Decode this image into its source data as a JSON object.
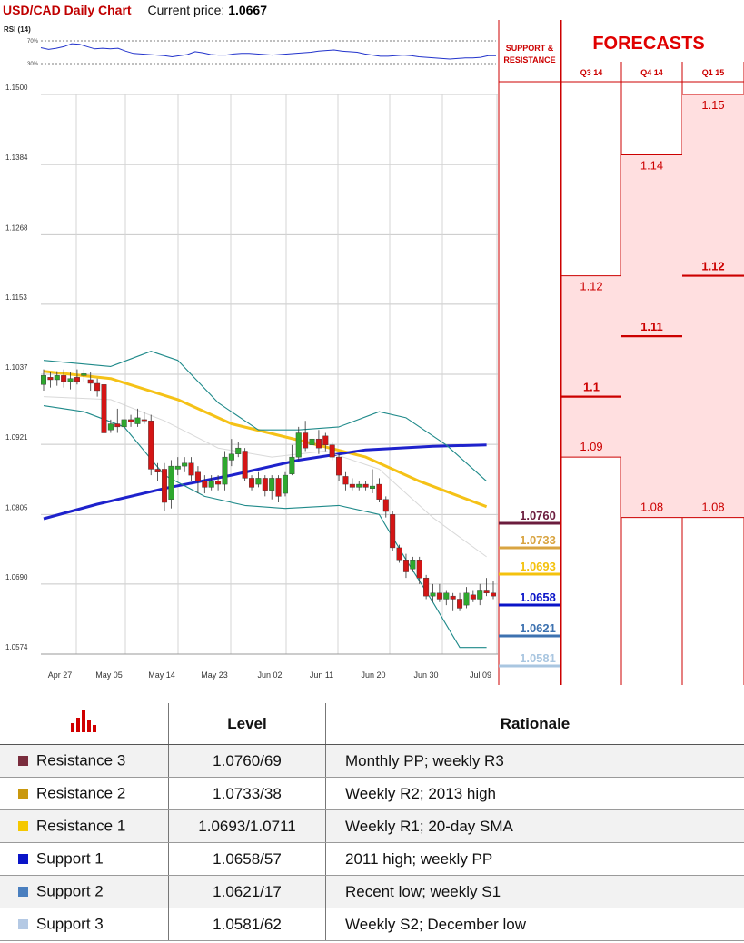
{
  "header": {
    "title": "USD/CAD Daily Chart",
    "price_label": "Current price:",
    "price_value": "1.0667"
  },
  "rsi": {
    "label": "RSI (14)",
    "upper_label": "70%",
    "lower_label": "30%",
    "values": [
      58,
      55,
      57,
      60,
      65,
      64,
      60,
      56,
      57,
      56,
      57,
      52,
      48,
      47,
      46,
      45,
      44,
      42,
      44,
      46,
      51,
      49,
      46,
      45,
      45,
      47,
      48,
      48,
      47,
      46,
      45,
      46,
      47,
      48,
      49,
      50,
      52,
      53,
      54,
      52,
      51,
      50,
      47,
      45,
      43,
      43,
      44,
      45,
      44,
      42,
      41,
      40,
      39,
      38,
      39,
      40,
      40,
      41,
      44,
      44
    ]
  },
  "support_resistance": {
    "header_line1": "SUPPORT &",
    "header_line2": "RESISTANCE",
    "levels": [
      {
        "label": "1.0760",
        "value": 1.076,
        "color": "#6b1d3e"
      },
      {
        "label": "1.0733",
        "value": 1.0733,
        "color": "#d9a441"
      },
      {
        "label": "1.0693",
        "value": 1.0693,
        "color": "#f4c20d"
      },
      {
        "label": "1.0658",
        "value": 1.0658,
        "color": "#0a14c8"
      },
      {
        "label": "1.0621",
        "value": 1.0621,
        "color": "#3d72b0"
      },
      {
        "label": "1.0581",
        "value": 1.0581,
        "color": "#a9c6e0"
      }
    ]
  },
  "forecasts": {
    "title": "FORECASTS",
    "columns": [
      {
        "period": "Q3 14",
        "high": 1.12,
        "mean": 1.1,
        "low": 1.09,
        "high_label": "1.12",
        "mean_label": "1.1",
        "low_label": "1.09"
      },
      {
        "period": "Q4 14",
        "high": 1.14,
        "mean": 1.11,
        "low": 1.08,
        "high_label": "1.14",
        "mean_label": "1.11",
        "low_label": "1.08"
      },
      {
        "period": "Q1 15",
        "high": 1.15,
        "mean": 1.12,
        "low": 1.08,
        "high_label": "1.15",
        "mean_label": "1.12",
        "low_label": "1.08"
      }
    ]
  },
  "chart_data": {
    "type": "candlestick",
    "title": "USD/CAD Daily Chart",
    "ylim": [
      1.0574,
      1.15
    ],
    "y_ticks": [
      "1.1500",
      "1.1384",
      "1.1268",
      "1.1153",
      "1.1037",
      "1.0921",
      "1.0805",
      "1.0690",
      "1.0574"
    ],
    "x_ticks": [
      "Apr 27",
      "May 05",
      "May 14",
      "May 23",
      "Jun 02",
      "Jun 11",
      "Jun 20",
      "Jun 30",
      "Jul 09"
    ],
    "candles": [
      [
        1.102,
        1.1035,
        1.1045,
        1.101
      ],
      [
        1.1032,
        1.1028,
        1.104,
        1.1015
      ],
      [
        1.1028,
        1.1035,
        1.1042,
        1.1018
      ],
      [
        1.1035,
        1.1025,
        1.1045,
        1.1015
      ],
      [
        1.1025,
        1.103,
        1.104,
        1.1012
      ],
      [
        1.1032,
        1.1025,
        1.1045,
        1.102
      ],
      [
        1.1035,
        1.1038,
        1.1045,
        1.1025
      ],
      [
        1.1028,
        1.1022,
        1.104,
        1.101
      ],
      [
        1.1022,
        1.101,
        1.103,
        1.1
      ],
      [
        1.102,
        1.094,
        1.1025,
        1.0935
      ],
      [
        1.0945,
        1.0955,
        1.0962,
        1.094
      ],
      [
        1.0955,
        1.095,
        1.098,
        1.094
      ],
      [
        1.095,
        1.0962,
        1.099,
        1.0945
      ],
      [
        1.0962,
        1.0958,
        1.097,
        1.095
      ],
      [
        1.0955,
        1.0965,
        1.098,
        1.095
      ],
      [
        1.0962,
        1.096,
        1.0975,
        1.0955
      ],
      [
        1.096,
        1.088,
        1.097,
        1.087
      ],
      [
        1.088,
        1.0875,
        1.089,
        1.086
      ],
      [
        1.088,
        1.0825,
        1.089,
        1.081
      ],
      [
        1.083,
        1.0885,
        1.0895,
        1.0815
      ],
      [
        1.088,
        1.0885,
        1.09,
        1.087
      ],
      [
        1.0885,
        1.089,
        1.09,
        1.0875
      ],
      [
        1.089,
        1.087,
        1.09,
        1.086
      ],
      [
        1.0875,
        1.086,
        1.0885,
        1.084
      ],
      [
        1.086,
        1.085,
        1.087,
        1.084
      ],
      [
        1.085,
        1.086,
        1.087,
        1.0845
      ],
      [
        1.086,
        1.0855,
        1.087,
        1.0845
      ],
      [
        1.0855,
        1.09,
        1.091,
        1.0845
      ],
      [
        1.0895,
        1.0905,
        1.093,
        1.0885
      ],
      [
        1.0905,
        1.0915,
        1.0925,
        1.09
      ],
      [
        1.091,
        1.0865,
        1.0915,
        1.086
      ],
      [
        1.0865,
        1.085,
        1.087,
        1.0845
      ],
      [
        1.0855,
        1.0865,
        1.0875,
        1.085
      ],
      [
        1.0865,
        1.0845,
        1.087,
        1.0835
      ],
      [
        1.0845,
        1.0865,
        1.087,
        1.083
      ],
      [
        1.0865,
        1.0835,
        1.087,
        1.0825
      ],
      [
        1.084,
        1.087,
        1.0875,
        1.0835
      ],
      [
        1.0872,
        1.09,
        1.092,
        1.087
      ],
      [
        1.09,
        1.094,
        1.095,
        1.0895
      ],
      [
        1.094,
        1.0915,
        1.096,
        1.091
      ],
      [
        1.092,
        1.093,
        1.0945,
        1.0915
      ],
      [
        1.093,
        1.0915,
        1.0945,
        1.0905
      ],
      [
        1.0935,
        1.092,
        1.094,
        1.091
      ],
      [
        1.092,
        1.09,
        1.0925,
        1.0895
      ],
      [
        1.09,
        1.087,
        1.0905,
        1.086
      ],
      [
        1.0868,
        1.0855,
        1.0875,
        1.0845
      ],
      [
        1.0855,
        1.085,
        1.0865,
        1.0845
      ],
      [
        1.085,
        1.0855,
        1.086,
        1.0845
      ],
      [
        1.0855,
        1.085,
        1.086,
        1.0845
      ],
      [
        1.0848,
        1.0852,
        1.088,
        1.084
      ],
      [
        1.0855,
        1.083,
        1.0865,
        1.0825
      ],
      [
        1.083,
        1.081,
        1.0835,
        1.08
      ],
      [
        1.0805,
        1.075,
        1.081,
        1.0745
      ],
      [
        1.075,
        1.073,
        1.0755,
        1.0725
      ],
      [
        1.073,
        1.071,
        1.074,
        1.07
      ],
      [
        1.0715,
        1.073,
        1.0735,
        1.071
      ],
      [
        1.073,
        1.07,
        1.0735,
        1.069
      ],
      [
        1.07,
        1.067,
        1.0705,
        1.0665
      ],
      [
        1.067,
        1.0675,
        1.069,
        1.066
      ],
      [
        1.0675,
        1.0665,
        1.069,
        1.066
      ],
      [
        1.0665,
        1.0675,
        1.068,
        1.0655
      ],
      [
        1.067,
        1.0665,
        1.0675,
        1.0645
      ],
      [
        1.0665,
        1.065,
        1.0675,
        1.0645
      ],
      [
        1.0655,
        1.0675,
        1.0685,
        1.065
      ],
      [
        1.0672,
        1.0665,
        1.068,
        1.066
      ],
      [
        1.0665,
        1.068,
        1.069,
        1.0655
      ],
      [
        1.068,
        1.0675,
        1.07,
        1.067
      ],
      [
        1.0675,
        1.067,
        1.0695,
        1.0665
      ]
    ],
    "series": [
      {
        "color": "#f5c217",
        "points": [
          [
            0,
            1.1042
          ],
          [
            10,
            1.103
          ],
          [
            20,
            1.0995
          ],
          [
            28,
            1.0955
          ],
          [
            38,
            1.0928
          ],
          [
            48,
            1.09
          ],
          [
            56,
            1.086
          ],
          [
            66,
            1.0818
          ]
        ]
      },
      {
        "color": "#1e22cc",
        "points": [
          [
            0,
            1.0798
          ],
          [
            8,
            1.0822
          ],
          [
            18,
            1.0848
          ],
          [
            28,
            1.087
          ],
          [
            38,
            1.0895
          ],
          [
            48,
            1.0912
          ],
          [
            58,
            1.0918
          ],
          [
            66,
            1.092
          ]
        ]
      },
      {
        "color": "#d9d9d9",
        "points": [
          [
            0,
            1.1
          ],
          [
            10,
            1.0995
          ],
          [
            18,
            1.096
          ],
          [
            26,
            1.0915
          ],
          [
            34,
            1.09
          ],
          [
            42,
            1.091
          ],
          [
            50,
            1.088
          ],
          [
            58,
            1.08
          ],
          [
            66,
            1.0735
          ]
        ]
      },
      {
        "color": "#1f8a8a",
        "points": [
          [
            0,
            1.106
          ],
          [
            10,
            1.105
          ],
          [
            16,
            1.1075
          ],
          [
            20,
            1.106
          ],
          [
            26,
            1.099
          ],
          [
            32,
            1.0945
          ],
          [
            38,
            1.0945
          ],
          [
            44,
            1.095
          ],
          [
            50,
            1.0975
          ],
          [
            54,
            1.0965
          ],
          [
            60,
            1.092
          ],
          [
            66,
            1.086
          ]
        ]
      },
      {
        "color": "#1f8a8a",
        "points": [
          [
            0,
            1.0985
          ],
          [
            6,
            1.0975
          ],
          [
            12,
            1.095
          ],
          [
            18,
            1.087
          ],
          [
            24,
            1.0835
          ],
          [
            30,
            1.082
          ],
          [
            36,
            1.0815
          ],
          [
            44,
            1.082
          ],
          [
            50,
            1.0805
          ],
          [
            54,
            1.073
          ],
          [
            58,
            1.066
          ],
          [
            62,
            1.0585
          ],
          [
            66,
            1.0585
          ]
        ]
      }
    ]
  },
  "table": {
    "level_header": "Level",
    "rationale_header": "Rationale",
    "rows": [
      {
        "name": "Resistance 3",
        "level": "1.0760/69",
        "rationale": "Monthly PP; weekly R3",
        "color": "#7a2d3d"
      },
      {
        "name": "Resistance 2",
        "level": "1.0733/38",
        "rationale": "Weekly R2; 2013 high",
        "color": "#c9980e"
      },
      {
        "name": "Resistance 1",
        "level": "1.0693/1.0711",
        "rationale": "Weekly R1; 20-day SMA",
        "color": "#f5c800"
      },
      {
        "name": "Support 1",
        "level": "1.0658/57",
        "rationale": "2011 high; weekly PP",
        "color": "#0a14c8"
      },
      {
        "name": "Support 2",
        "level": "1.0621/17",
        "rationale": "Recent low; weekly S1",
        "color": "#4a7fbf"
      },
      {
        "name": "Support 3",
        "level": "1.0581/62",
        "rationale": "Weekly S2; December low",
        "color": "#b4c9e4"
      }
    ]
  }
}
